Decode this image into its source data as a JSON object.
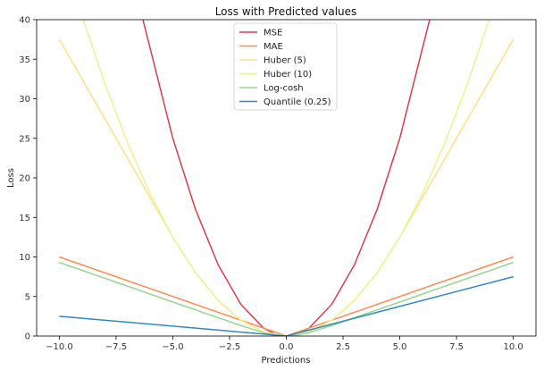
{
  "chart_data": {
    "type": "line",
    "title": "Loss with Predicted values",
    "xlabel": "Predictions",
    "ylabel": "Loss",
    "xlim": [
      -11,
      11
    ],
    "ylim": [
      0,
      40
    ],
    "xticks": [
      -10.0,
      -7.5,
      -5.0,
      -2.5,
      0.0,
      2.5,
      5.0,
      7.5,
      10.0
    ],
    "xtick_labels": [
      "−10.0",
      "−7.5",
      "−5.0",
      "−2.5",
      "0.0",
      "2.5",
      "5.0",
      "7.5",
      "10.0"
    ],
    "yticks": [
      0,
      5,
      10,
      15,
      20,
      25,
      30,
      35,
      40
    ],
    "ytick_labels": [
      "0",
      "5",
      "10",
      "15",
      "20",
      "25",
      "30",
      "35",
      "40"
    ],
    "grid": false,
    "legend_position": "top-center",
    "series": [
      {
        "name": "MSE",
        "color": "#d53e4f",
        "x": [
          -6.4,
          -5,
          -4,
          -3,
          -2,
          -1,
          -0.5,
          0,
          0.5,
          1,
          2,
          3,
          4,
          5,
          6.4
        ],
        "y": [
          40.96,
          25,
          16,
          9,
          4,
          1,
          0.25,
          0,
          0.25,
          1,
          4,
          9,
          16,
          25,
          40.96
        ]
      },
      {
        "name": "MAE",
        "color": "#fc8d59",
        "x": [
          -10,
          0,
          10
        ],
        "y": [
          10,
          0,
          10
        ]
      },
      {
        "name": "Huber (5)",
        "color": "#fee08b",
        "x": [
          -10,
          -7.5,
          -5,
          -4,
          -3,
          -2,
          -1,
          0,
          1,
          2,
          3,
          4,
          5,
          7.5,
          10
        ],
        "y": [
          37.5,
          25,
          12.5,
          8,
          4.5,
          2,
          0.5,
          0,
          0.5,
          2,
          4.5,
          8,
          12.5,
          25,
          37.5
        ]
      },
      {
        "name": "Huber (10)",
        "color": "#e6f598",
        "x": [
          -8.94,
          -8,
          -7,
          -6,
          -5,
          -4,
          -3,
          -2,
          -1,
          0,
          1,
          2,
          3,
          4,
          5,
          6,
          7,
          8,
          8.94
        ],
        "y": [
          40,
          32,
          24.5,
          18,
          12.5,
          8,
          4.5,
          2,
          0.5,
          0,
          0.5,
          2,
          4.5,
          8,
          12.5,
          18,
          24.5,
          32,
          40
        ]
      },
      {
        "name": "Log-cosh",
        "color": "#99d594",
        "x": [
          -10,
          -7.5,
          -5,
          -3,
          -2,
          -1,
          -0.5,
          0,
          0.5,
          1,
          2,
          3,
          5,
          7.5,
          10
        ],
        "y": [
          9.31,
          6.81,
          4.31,
          2.32,
          1.33,
          0.43,
          0.12,
          0,
          0.12,
          0.43,
          1.33,
          2.32,
          4.31,
          6.81,
          9.31
        ]
      },
      {
        "name": "Quantile (0.25)",
        "color": "#3288bd",
        "x": [
          -10,
          0,
          10
        ],
        "y": [
          2.5,
          0,
          7.5
        ]
      }
    ]
  }
}
